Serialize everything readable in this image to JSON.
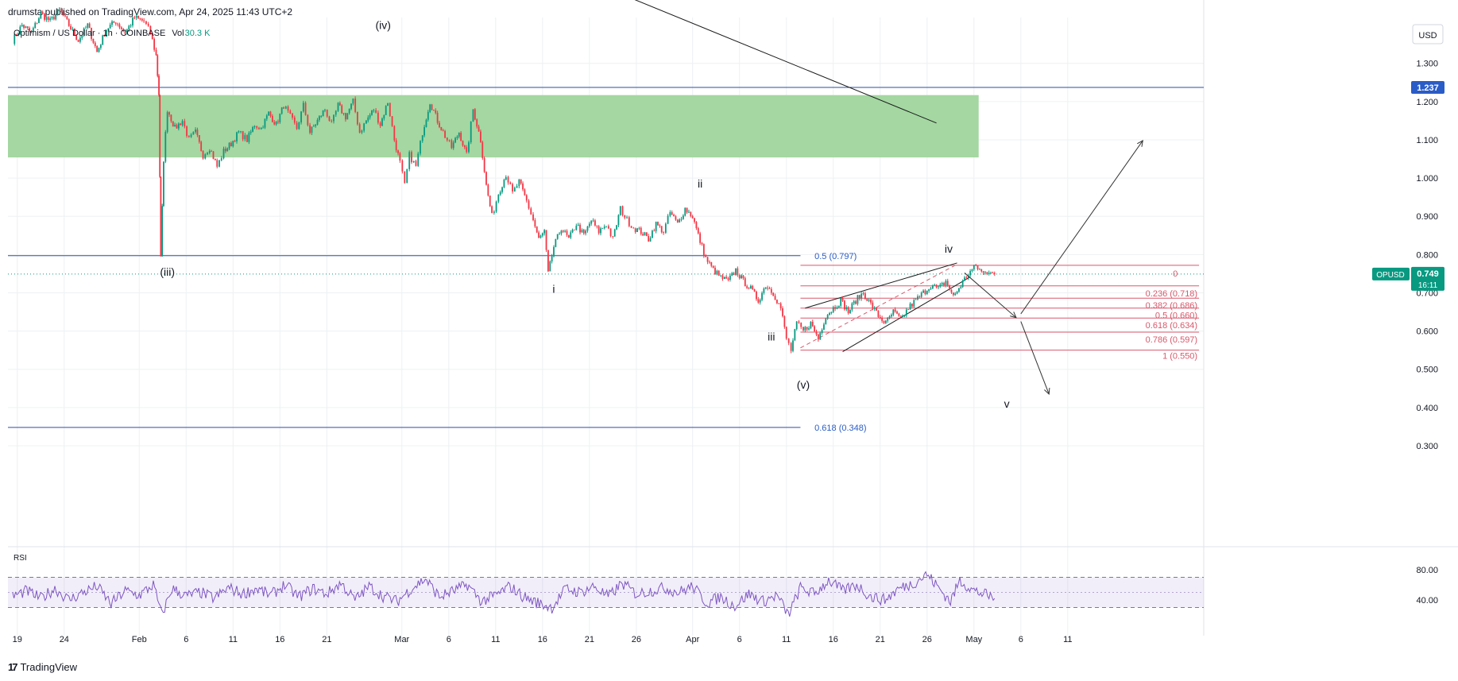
{
  "header": {
    "publisher": "drumsta published on TradingView.com, Apr 24, 2025 11:43 UTC+2"
  },
  "legend": {
    "symbol": "Optimism / US Dollar · 1h · COINBASE",
    "vol_label": "Vol",
    "vol_value": "30.3 K"
  },
  "footer": {
    "brand": "TradingView",
    "logo_glyph": "17"
  },
  "colors": {
    "candle_up": "#089981",
    "candle_down": "#f23645",
    "zone_fill": "#9fd59c",
    "hline": "#2a4fa3",
    "fib_red": "#d9586b",
    "fib_blue": "#2962ff",
    "rsi": "#7e57c2",
    "price_badge": "#089981",
    "level_badge": "#2a5cc7"
  },
  "chart_data": {
    "type": "candlestick",
    "title": "Optimism / US Dollar · 1h · COINBASE",
    "currency": "USD",
    "y_ticks": [
      "1.300",
      "1.200",
      "1.100",
      "1.000",
      "0.900",
      "0.800",
      "0.700",
      "0.600",
      "0.500",
      "0.400",
      "0.300"
    ],
    "y_tick_values": [
      1.3,
      1.2,
      1.1,
      1.0,
      0.9,
      0.8,
      0.7,
      0.6,
      0.5,
      0.4,
      0.3
    ],
    "x_ticks": [
      "19",
      "24",
      "Feb",
      "6",
      "11",
      "16",
      "21",
      "Mar",
      "6",
      "11",
      "16",
      "21",
      "26",
      "Apr",
      "6",
      "11",
      "16",
      "21",
      "26",
      "May",
      "6",
      "11"
    ],
    "x_tick_days": [
      -13,
      -8,
      0,
      5,
      10,
      15,
      20,
      28,
      33,
      38,
      43,
      48,
      53,
      59,
      64,
      69,
      74,
      79,
      84,
      89,
      94,
      99
    ],
    "ylim": [
      0.25,
      1.42
    ],
    "xlim": [
      -14,
      113.5
    ],
    "date_axis_start": "Feb 1",
    "last_price": {
      "symbol": "OPUSD",
      "value": "0.749",
      "countdown": "16:11",
      "y": 0.749
    },
    "level_badge": {
      "value": "1.237",
      "y": 1.237
    },
    "price_path": [
      [
        -13.5,
        1.36
      ],
      [
        -12.5,
        1.4
      ],
      [
        -11.5,
        1.38
      ],
      [
        -10.5,
        1.43
      ],
      [
        -9.5,
        1.41
      ],
      [
        -8.5,
        1.44
      ],
      [
        -7.5,
        1.4
      ],
      [
        -6.5,
        1.36
      ],
      [
        -5.5,
        1.4
      ],
      [
        -4.5,
        1.33
      ],
      [
        -3.5,
        1.39
      ],
      [
        -2.5,
        1.41
      ],
      [
        -1.5,
        1.38
      ],
      [
        -0.5,
        1.42
      ],
      [
        0.5,
        1.41
      ],
      [
        1.2,
        1.38
      ],
      [
        1.8,
        1.32
      ],
      [
        2.1,
        1.22
      ],
      [
        2.3,
        0.79
      ],
      [
        2.6,
        1.05
      ],
      [
        3.0,
        1.18
      ],
      [
        3.8,
        1.13
      ],
      [
        4.6,
        1.15
      ],
      [
        5.3,
        1.1
      ],
      [
        6.0,
        1.12
      ],
      [
        6.8,
        1.06
      ],
      [
        7.5,
        1.08
      ],
      [
        8.3,
        1.03
      ],
      [
        9.0,
        1.07
      ],
      [
        9.8,
        1.09
      ],
      [
        10.6,
        1.12
      ],
      [
        11.5,
        1.1
      ],
      [
        12.3,
        1.14
      ],
      [
        13.0,
        1.13
      ],
      [
        13.8,
        1.17
      ],
      [
        14.6,
        1.14
      ],
      [
        15.4,
        1.19
      ],
      [
        16.1,
        1.16
      ],
      [
        16.8,
        1.13
      ],
      [
        17.5,
        1.19
      ],
      [
        18.2,
        1.12
      ],
      [
        19.0,
        1.15
      ],
      [
        19.8,
        1.18
      ],
      [
        20.5,
        1.14
      ],
      [
        21.2,
        1.19
      ],
      [
        22.0,
        1.16
      ],
      [
        22.8,
        1.2
      ],
      [
        23.5,
        1.12
      ],
      [
        24.2,
        1.15
      ],
      [
        25.0,
        1.18
      ],
      [
        25.7,
        1.14
      ],
      [
        26.5,
        1.2
      ],
      [
        27.2,
        1.1
      ],
      [
        27.8,
        1.04
      ],
      [
        28.3,
        0.98
      ],
      [
        28.8,
        1.06
      ],
      [
        29.5,
        1.03
      ],
      [
        30.2,
        1.12
      ],
      [
        31.0,
        1.2
      ],
      [
        31.8,
        1.15
      ],
      [
        32.6,
        1.11
      ],
      [
        33.3,
        1.08
      ],
      [
        34.1,
        1.12
      ],
      [
        34.9,
        1.06
      ],
      [
        35.6,
        1.18
      ],
      [
        36.4,
        1.1
      ],
      [
        37.0,
        0.98
      ],
      [
        37.6,
        0.9
      ],
      [
        38.3,
        0.96
      ],
      [
        39.1,
        1.01
      ],
      [
        39.8,
        0.96
      ],
      [
        40.5,
        0.99
      ],
      [
        41.3,
        0.94
      ],
      [
        42.0,
        0.89
      ],
      [
        42.6,
        0.84
      ],
      [
        43.2,
        0.86
      ],
      [
        43.6,
        0.75
      ],
      [
        44.2,
        0.82
      ],
      [
        45.0,
        0.87
      ],
      [
        45.8,
        0.84
      ],
      [
        46.6,
        0.88
      ],
      [
        47.4,
        0.85
      ],
      [
        48.2,
        0.89
      ],
      [
        49.0,
        0.86
      ],
      [
        49.8,
        0.88
      ],
      [
        50.5,
        0.84
      ],
      [
        51.3,
        0.92
      ],
      [
        52.0,
        0.89
      ],
      [
        52.7,
        0.87
      ],
      [
        53.5,
        0.86
      ],
      [
        54.3,
        0.84
      ],
      [
        55.1,
        0.88
      ],
      [
        55.9,
        0.86
      ],
      [
        56.6,
        0.91
      ],
      [
        57.4,
        0.88
      ],
      [
        58.2,
        0.92
      ],
      [
        59.0,
        0.9
      ],
      [
        59.6,
        0.85
      ],
      [
        60.4,
        0.79
      ],
      [
        61.2,
        0.76
      ],
      [
        62.0,
        0.74
      ],
      [
        62.8,
        0.73
      ],
      [
        63.6,
        0.76
      ],
      [
        64.4,
        0.73
      ],
      [
        65.2,
        0.71
      ],
      [
        66.0,
        0.68
      ],
      [
        66.8,
        0.72
      ],
      [
        67.6,
        0.7
      ],
      [
        68.4,
        0.66
      ],
      [
        69.0,
        0.58
      ],
      [
        69.5,
        0.55
      ],
      [
        70.1,
        0.62
      ],
      [
        70.8,
        0.6
      ],
      [
        71.6,
        0.62
      ],
      [
        72.4,
        0.58
      ],
      [
        73.2,
        0.64
      ],
      [
        74.0,
        0.66
      ],
      [
        74.8,
        0.68
      ],
      [
        75.6,
        0.65
      ],
      [
        76.4,
        0.68
      ],
      [
        77.2,
        0.7
      ],
      [
        78.0,
        0.67
      ],
      [
        78.8,
        0.64
      ],
      [
        79.6,
        0.62
      ],
      [
        80.4,
        0.65
      ],
      [
        81.2,
        0.63
      ],
      [
        82.0,
        0.66
      ],
      [
        82.8,
        0.68
      ],
      [
        83.6,
        0.7
      ],
      [
        84.4,
        0.72
      ],
      [
        85.2,
        0.71
      ],
      [
        86.0,
        0.73
      ],
      [
        86.8,
        0.69
      ],
      [
        87.6,
        0.72
      ],
      [
        88.4,
        0.75
      ],
      [
        89.2,
        0.77
      ],
      [
        90.0,
        0.75
      ],
      [
        90.8,
        0.76
      ],
      [
        91.2,
        0.749
      ]
    ],
    "supply_zone": {
      "x0": -14,
      "x1": 89.5,
      "y0": 1.054,
      "y1": 1.217
    },
    "horizontal_lines": [
      {
        "y": 1.237,
        "x0": -14,
        "x1": 113.5
      },
      {
        "y": 0.797,
        "x0": -14,
        "x1": 70.5
      },
      {
        "y": 0.348,
        "x0": -14,
        "x1": 70.5
      }
    ],
    "dotted_price_line": 0.749,
    "fib_right": [
      {
        "label": "0",
        "y": 0.772
      },
      {
        "label": "0.236 (0.718)",
        "y": 0.718
      },
      {
        "label": "0.382 (0.686)",
        "y": 0.686
      },
      {
        "label": "0.5 (0.660)",
        "y": 0.66
      },
      {
        "label": "0.618 (0.634)",
        "y": 0.634
      },
      {
        "label": "0.786 (0.597)",
        "y": 0.597
      },
      {
        "label": "1 (0.550)",
        "y": 0.55
      }
    ],
    "fib_left": [
      {
        "label": "0.5 (0.797)",
        "y": 0.797
      },
      {
        "label": "0.618 (0.348)",
        "y": 0.348
      }
    ],
    "wave_labels": [
      {
        "text": "(iv)",
        "x": 26.0,
        "y": 1.39
      },
      {
        "text": "(iii)",
        "x": 3.0,
        "y": 0.745
      },
      {
        "text": "i",
        "x": 44.2,
        "y": 0.7
      },
      {
        "text": "ii",
        "x": 59.8,
        "y": 0.975
      },
      {
        "text": "iii",
        "x": 67.4,
        "y": 0.575
      },
      {
        "text": "(v)",
        "x": 70.8,
        "y": 0.45
      },
      {
        "text": "iv",
        "x": 86.3,
        "y": 0.805
      },
      {
        "text": "v",
        "x": 92.5,
        "y": 0.4
      }
    ],
    "trend_lines": [
      {
        "x0": 51.5,
        "y0": 1.48,
        "x1": 85.0,
        "y1": 1.144
      },
      {
        "x0": 71.0,
        "y0": 0.66,
        "x1": 87.2,
        "y1": 0.778
      },
      {
        "x0": 75.0,
        "y0": 0.546,
        "x1": 88.5,
        "y1": 0.74
      },
      {
        "x0": 70.5,
        "y0": 0.556,
        "x1": 87.0,
        "y1": 0.772,
        "dashed": true
      }
    ],
    "arrows": [
      {
        "x0": 88.0,
        "y0": 0.752,
        "x1": 93.5,
        "y1": 0.635
      },
      {
        "x0": 94.0,
        "y0": 0.625,
        "x1": 97.0,
        "y1": 0.435
      },
      {
        "x0": 94.0,
        "y0": 0.645,
        "x1": 107.0,
        "y1": 1.098
      }
    ],
    "rsi": {
      "label": "RSI",
      "ticks": [
        "80.00",
        "40.00"
      ],
      "tick_values": [
        80,
        40
      ],
      "upper": 70,
      "middle": 50,
      "lower": 30,
      "ylim": [
        0,
        100
      ],
      "points": [
        [
          -13.5,
          45
        ],
        [
          -12,
          52
        ],
        [
          -10.5,
          42
        ],
        [
          -9,
          55
        ],
        [
          -7.5,
          40
        ],
        [
          -6,
          50
        ],
        [
          -4.5,
          58
        ],
        [
          -3,
          35
        ],
        [
          -1.5,
          52
        ],
        [
          0,
          46
        ],
        [
          1.5,
          60
        ],
        [
          2.4,
          20
        ],
        [
          3.5,
          55
        ],
        [
          5,
          45
        ],
        [
          6.5,
          50
        ],
        [
          8,
          42
        ],
        [
          9.5,
          56
        ],
        [
          11,
          48
        ],
        [
          12.5,
          55
        ],
        [
          14,
          46
        ],
        [
          15.5,
          60
        ],
        [
          17,
          44
        ],
        [
          18.5,
          55
        ],
        [
          20,
          48
        ],
        [
          21.5,
          62
        ],
        [
          23,
          40
        ],
        [
          24.5,
          58
        ],
        [
          26,
          45
        ],
        [
          27.5,
          38
        ],
        [
          29,
          55
        ],
        [
          30.5,
          68
        ],
        [
          32,
          44
        ],
        [
          33.5,
          52
        ],
        [
          35,
          60
        ],
        [
          36.5,
          38
        ],
        [
          38,
          46
        ],
        [
          39.5,
          58
        ],
        [
          41,
          44
        ],
        [
          42.5,
          36
        ],
        [
          44,
          30
        ],
        [
          45.5,
          55
        ],
        [
          47,
          50
        ],
        [
          48.5,
          58
        ],
        [
          50,
          44
        ],
        [
          51.5,
          62
        ],
        [
          53,
          48
        ],
        [
          54.5,
          52
        ],
        [
          56,
          56
        ],
        [
          57.5,
          50
        ],
        [
          59,
          58
        ],
        [
          60.5,
          36
        ],
        [
          62,
          44
        ],
        [
          63.5,
          32
        ],
        [
          65,
          48
        ],
        [
          66.5,
          38
        ],
        [
          68,
          46
        ],
        [
          69.2,
          20
        ],
        [
          70.5,
          56
        ],
        [
          72,
          48
        ],
        [
          73.5,
          66
        ],
        [
          75,
          52
        ],
        [
          76.5,
          60
        ],
        [
          78,
          44
        ],
        [
          79.5,
          40
        ],
        [
          81,
          55
        ],
        [
          82.5,
          62
        ],
        [
          84,
          74
        ],
        [
          85.5,
          52
        ],
        [
          86.5,
          38
        ],
        [
          87.5,
          66
        ],
        [
          89,
          52
        ],
        [
          90,
          48
        ],
        [
          91.2,
          42
        ]
      ]
    }
  }
}
